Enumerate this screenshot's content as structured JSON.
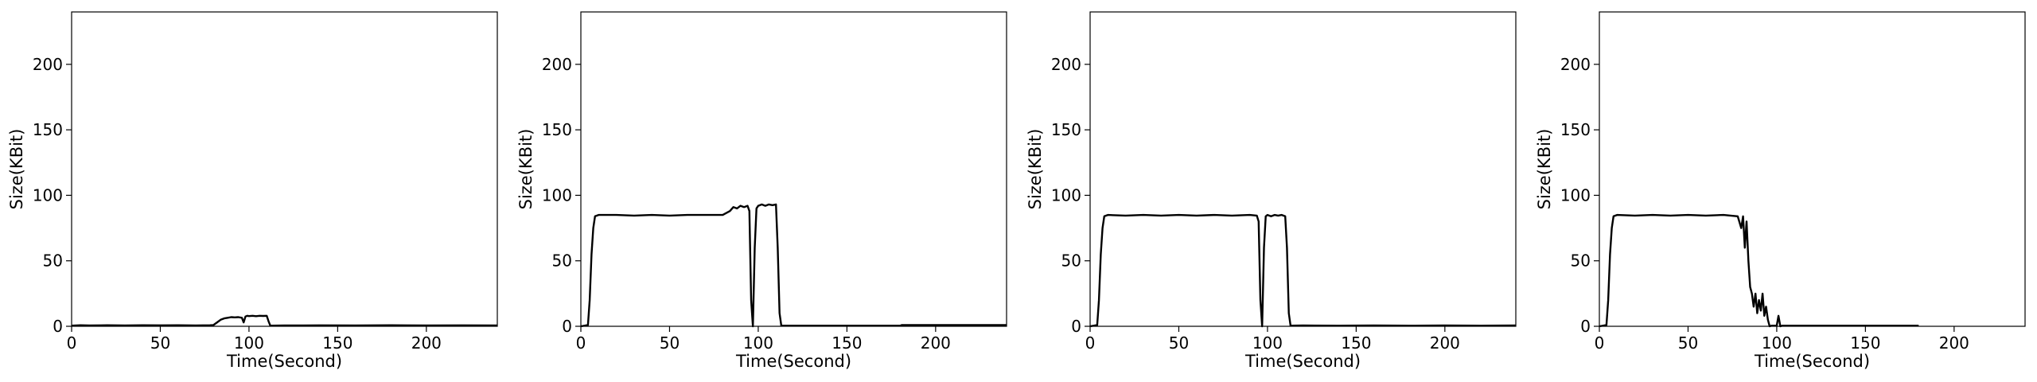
{
  "chart_data": [
    {
      "type": "line",
      "xlabel": "Time(Second)",
      "ylabel": "Size(KBit)",
      "xlim": [
        0,
        240
      ],
      "ylim": [
        0,
        240
      ],
      "xticks": [
        0,
        50,
        100,
        150,
        200
      ],
      "yticks": [
        0,
        50,
        100,
        150,
        200
      ],
      "grid": false,
      "series": [
        {
          "color": "#000000",
          "x": [
            0,
            5,
            10,
            20,
            30,
            40,
            50,
            60,
            70,
            78,
            80,
            82,
            84,
            86,
            88,
            90,
            92,
            94,
            96,
            97,
            98,
            99,
            100,
            102,
            104,
            106,
            108,
            110,
            111,
            112,
            120,
            140,
            160,
            180,
            200,
            220,
            240
          ],
          "y": [
            0.5,
            0.8,
            0.6,
            0.8,
            0.6,
            0.8,
            0.7,
            0.8,
            0.6,
            0.8,
            1,
            3,
            5,
            6,
            6.5,
            7,
            6.8,
            7,
            6.5,
            3,
            7.5,
            8,
            7.8,
            8,
            7.7,
            8,
            7.9,
            8,
            4,
            0.5,
            0.6,
            0.7,
            0.6,
            0.8,
            0.6,
            0.7,
            0.6
          ]
        }
      ]
    },
    {
      "type": "line",
      "xlabel": "Time(Second)",
      "ylabel": "Size(KBit)",
      "xlim": [
        0,
        240
      ],
      "ylim": [
        0,
        240
      ],
      "xticks": [
        0,
        50,
        100,
        150,
        200
      ],
      "yticks": [
        0,
        50,
        100,
        150,
        200
      ],
      "grid": false,
      "series": [
        {
          "color": "#000000",
          "x": [
            0,
            4,
            5,
            6,
            7,
            8,
            10,
            20,
            30,
            40,
            50,
            60,
            70,
            80,
            84,
            86,
            88,
            90,
            92,
            94,
            95,
            96,
            97,
            98,
            99,
            100,
            102,
            104,
            106,
            108,
            110,
            111,
            112,
            113,
            120,
            140,
            160,
            180,
            181,
            200,
            220,
            240
          ],
          "y": [
            0,
            1,
            20,
            55,
            75,
            84,
            85,
            85,
            84.5,
            85,
            84.5,
            85,
            85,
            85,
            88,
            91,
            90,
            92,
            91,
            92,
            88,
            20,
            0,
            60,
            90,
            92,
            93,
            92,
            93,
            92.5,
            93,
            60,
            10,
            0.5,
            0.5,
            0.5,
            0.5,
            0.5,
            1,
            1,
            1,
            1
          ]
        }
      ]
    },
    {
      "type": "line",
      "xlabel": "Time(Second)",
      "ylabel": "Size(KBit)",
      "xlim": [
        0,
        240
      ],
      "ylim": [
        0,
        240
      ],
      "xticks": [
        0,
        50,
        100,
        150,
        200
      ],
      "yticks": [
        0,
        50,
        100,
        150,
        200
      ],
      "grid": false,
      "series": [
        {
          "color": "#000000",
          "x": [
            0,
            4,
            5,
            6,
            7,
            8,
            10,
            20,
            30,
            40,
            50,
            60,
            70,
            80,
            90,
            94,
            95,
            96,
            97,
            98,
            99,
            100,
            102,
            104,
            106,
            108,
            110,
            111,
            112,
            113,
            120,
            140,
            160,
            180,
            200,
            220,
            240
          ],
          "y": [
            0,
            1,
            20,
            55,
            75,
            84,
            85,
            84.5,
            85,
            84.5,
            85,
            84.5,
            85,
            84.5,
            85,
            84.5,
            80,
            20,
            0,
            60,
            84,
            85,
            84,
            85,
            84.5,
            85,
            84,
            60,
            10,
            0.5,
            0.6,
            0.5,
            0.6,
            0.5,
            0.6,
            0.5,
            0.6
          ]
        }
      ]
    },
    {
      "type": "line",
      "xlabel": "Time(Second)",
      "ylabel": "Size(KBit)",
      "xlim": [
        0,
        240
      ],
      "ylim": [
        0,
        240
      ],
      "xticks": [
        0,
        50,
        100,
        150,
        200
      ],
      "yticks": [
        0,
        50,
        100,
        150,
        200
      ],
      "grid": false,
      "series": [
        {
          "color": "#000000",
          "x": [
            0,
            4,
            5,
            6,
            7,
            8,
            10,
            20,
            30,
            40,
            50,
            60,
            70,
            78,
            80,
            81,
            82,
            83,
            84,
            85,
            86,
            87,
            88,
            89,
            90,
            91,
            92,
            93,
            94,
            95,
            96,
            97,
            98,
            99,
            100,
            101,
            102,
            103,
            104,
            105,
            106,
            107,
            108,
            110,
            120,
            140,
            160,
            180
          ],
          "y": [
            0,
            1,
            20,
            55,
            75,
            84,
            85,
            84.5,
            85,
            84.5,
            85,
            84.5,
            85,
            84,
            75,
            84,
            60,
            80,
            50,
            30,
            25,
            15,
            25,
            10,
            20,
            12,
            25,
            8,
            15,
            5,
            0,
            0.5,
            0.5,
            0.5,
            0.5,
            8,
            0,
            0.5,
            0.5,
            0.5,
            0.5,
            0.5,
            0.5,
            0.5,
            0.5,
            0.5,
            0.5,
            0.5
          ]
        }
      ]
    }
  ]
}
